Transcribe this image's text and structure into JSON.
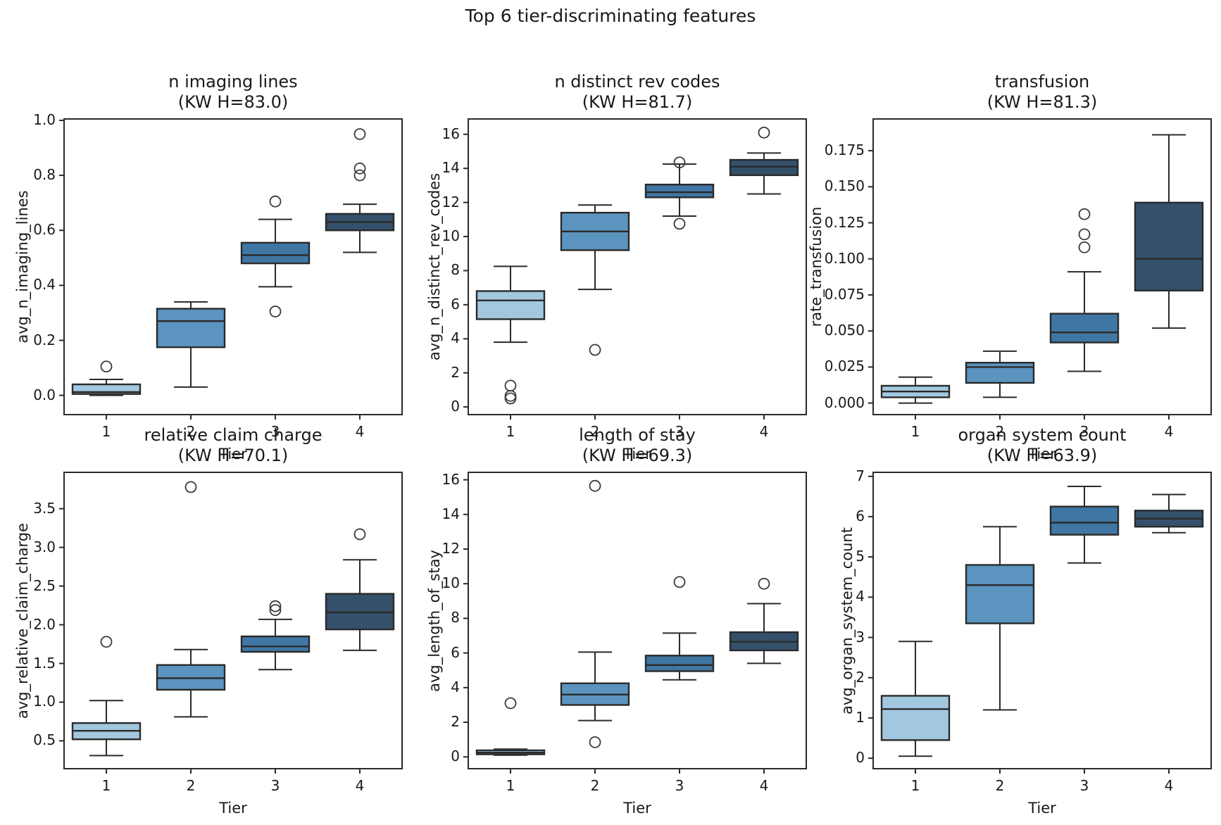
{
  "figure": {
    "suptitle": "Top 6 tier-discriminating features",
    "xlabel": "Tier",
    "x_categories": [
      "1",
      "2",
      "3",
      "4"
    ],
    "tier_colors": [
      "#a2c8e0",
      "#5b94be",
      "#3f76a3",
      "#34506b"
    ],
    "edge_color": "#2a2a2a",
    "text_color": "#191919",
    "background": "#ffffff"
  },
  "chart_data": [
    {
      "type": "box",
      "title": "n imaging lines",
      "subtitle": "(KW H=83.0)",
      "kw_h": 83.0,
      "ylabel": "avg_n_imaging_lines",
      "xlabel": "Tier",
      "categories": [
        "1",
        "2",
        "3",
        "4"
      ],
      "ylim": [
        -0.07,
        1.005
      ],
      "yticks": [
        0.0,
        0.2,
        0.4,
        0.6,
        0.8,
        1.0
      ],
      "ytick_labels": [
        "0.0",
        "0.2",
        "0.4",
        "0.6",
        "0.8",
        "1.0"
      ],
      "boxes": [
        {
          "tier": "1",
          "whislo": 0.0,
          "q1": 0.005,
          "med": 0.012,
          "q3": 0.04,
          "whishi": 0.058,
          "outliers": [
            0.105
          ]
        },
        {
          "tier": "2",
          "whislo": 0.03,
          "q1": 0.175,
          "med": 0.27,
          "q3": 0.315,
          "whishi": 0.34,
          "outliers": []
        },
        {
          "tier": "3",
          "whislo": 0.395,
          "q1": 0.48,
          "med": 0.51,
          "q3": 0.555,
          "whishi": 0.64,
          "outliers": [
            0.705,
            0.305
          ]
        },
        {
          "tier": "4",
          "whislo": 0.52,
          "q1": 0.6,
          "med": 0.63,
          "q3": 0.66,
          "whishi": 0.695,
          "outliers": [
            0.95,
            0.825,
            0.8
          ]
        }
      ]
    },
    {
      "type": "box",
      "title": "n distinct rev codes",
      "subtitle": "(KW H=81.7)",
      "kw_h": 81.7,
      "ylabel": "avg_n_distinct_rev_codes",
      "xlabel": "Tier",
      "categories": [
        "1",
        "2",
        "3",
        "4"
      ],
      "ylim": [
        -0.45,
        16.9
      ],
      "yticks": [
        0,
        2,
        4,
        6,
        8,
        10,
        12,
        14,
        16
      ],
      "ytick_labels": [
        "0",
        "2",
        "4",
        "6",
        "8",
        "10",
        "12",
        "14",
        "16"
      ],
      "boxes": [
        {
          "tier": "1",
          "whislo": 3.8,
          "q1": 5.15,
          "med": 6.25,
          "q3": 6.8,
          "whishi": 8.25,
          "outliers": [
            1.25,
            0.65,
            0.5
          ]
        },
        {
          "tier": "2",
          "whislo": 6.9,
          "q1": 9.2,
          "med": 10.3,
          "q3": 11.4,
          "whishi": 11.85,
          "outliers": [
            3.35
          ]
        },
        {
          "tier": "3",
          "whislo": 11.2,
          "q1": 12.3,
          "med": 12.6,
          "q3": 13.05,
          "whishi": 14.25,
          "outliers": [
            14.35,
            10.75
          ]
        },
        {
          "tier": "4",
          "whislo": 12.5,
          "q1": 13.6,
          "med": 14.1,
          "q3": 14.5,
          "whishi": 14.9,
          "outliers": [
            16.1
          ]
        }
      ]
    },
    {
      "type": "box",
      "title": "transfusion",
      "subtitle": "(KW H=81.3)",
      "kw_h": 81.3,
      "ylabel": "rate_transfusion",
      "xlabel": "Tier",
      "categories": [
        "1",
        "2",
        "3",
        "4"
      ],
      "ylim": [
        -0.008,
        0.197
      ],
      "yticks": [
        0.0,
        0.025,
        0.05,
        0.075,
        0.1,
        0.125,
        0.15,
        0.175
      ],
      "ytick_labels": [
        "0.000",
        "0.025",
        "0.050",
        "0.075",
        "0.100",
        "0.125",
        "0.150",
        "0.175"
      ],
      "boxes": [
        {
          "tier": "1",
          "whislo": 0.0,
          "q1": 0.004,
          "med": 0.008,
          "q3": 0.012,
          "whishi": 0.018,
          "outliers": []
        },
        {
          "tier": "2",
          "whislo": 0.004,
          "q1": 0.014,
          "med": 0.025,
          "q3": 0.028,
          "whishi": 0.036,
          "outliers": []
        },
        {
          "tier": "3",
          "whislo": 0.022,
          "q1": 0.042,
          "med": 0.049,
          "q3": 0.062,
          "whishi": 0.091,
          "outliers": [
            0.131,
            0.117,
            0.108
          ]
        },
        {
          "tier": "4",
          "whislo": 0.052,
          "q1": 0.078,
          "med": 0.1,
          "q3": 0.139,
          "whishi": 0.186,
          "outliers": []
        }
      ]
    },
    {
      "type": "box",
      "title": "relative claim charge",
      "subtitle": "(KW H=70.1)",
      "kw_h": 70.1,
      "ylabel": "avg_relative_claim_charge",
      "xlabel": "Tier",
      "categories": [
        "1",
        "2",
        "3",
        "4"
      ],
      "ylim": [
        0.14,
        3.97
      ],
      "yticks": [
        0.5,
        1.0,
        1.5,
        2.0,
        2.5,
        3.0,
        3.5
      ],
      "ytick_labels": [
        "0.5",
        "1.0",
        "1.5",
        "2.0",
        "2.5",
        "3.0",
        "3.5"
      ],
      "boxes": [
        {
          "tier": "1",
          "whislo": 0.31,
          "q1": 0.52,
          "med": 0.63,
          "q3": 0.73,
          "whishi": 1.02,
          "outliers": [
            1.78
          ]
        },
        {
          "tier": "2",
          "whislo": 0.81,
          "q1": 1.16,
          "med": 1.31,
          "q3": 1.48,
          "whishi": 1.68,
          "outliers": [
            3.78
          ]
        },
        {
          "tier": "3",
          "whislo": 1.42,
          "q1": 1.65,
          "med": 1.72,
          "q3": 1.85,
          "whishi": 2.07,
          "outliers": [
            2.24,
            2.19
          ]
        },
        {
          "tier": "4",
          "whislo": 1.67,
          "q1": 1.94,
          "med": 2.16,
          "q3": 2.4,
          "whishi": 2.84,
          "outliers": [
            3.17
          ]
        }
      ]
    },
    {
      "type": "box",
      "title": "length of stay",
      "subtitle": "(KW H=69.3)",
      "kw_h": 69.3,
      "ylabel": "avg_length_of_stay",
      "xlabel": "Tier",
      "categories": [
        "1",
        "2",
        "3",
        "4"
      ],
      "ylim": [
        -0.68,
        16.43
      ],
      "yticks": [
        0,
        2,
        4,
        6,
        8,
        10,
        12,
        14,
        16
      ],
      "ytick_labels": [
        "0",
        "2",
        "4",
        "6",
        "8",
        "10",
        "12",
        "14",
        "16"
      ],
      "boxes": [
        {
          "tier": "1",
          "whislo": 0.1,
          "q1": 0.15,
          "med": 0.25,
          "q3": 0.38,
          "whishi": 0.45,
          "outliers": [
            3.1
          ]
        },
        {
          "tier": "2",
          "whislo": 2.1,
          "q1": 3.0,
          "med": 3.6,
          "q3": 4.25,
          "whishi": 6.05,
          "outliers": [
            15.65,
            0.85
          ]
        },
        {
          "tier": "3",
          "whislo": 4.45,
          "q1": 4.95,
          "med": 5.3,
          "q3": 5.85,
          "whishi": 7.15,
          "outliers": [
            10.1
          ]
        },
        {
          "tier": "4",
          "whislo": 5.4,
          "q1": 6.15,
          "med": 6.65,
          "q3": 7.2,
          "whishi": 8.85,
          "outliers": [
            10.0
          ]
        }
      ]
    },
    {
      "type": "box",
      "title": "organ system count",
      "subtitle": "(KW H=63.9)",
      "kw_h": 63.9,
      "ylabel": "avg_organ_system_count",
      "xlabel": "Tier",
      "categories": [
        "1",
        "2",
        "3",
        "4"
      ],
      "ylim": [
        -0.26,
        7.1
      ],
      "yticks": [
        0,
        1,
        2,
        3,
        4,
        5,
        6,
        7
      ],
      "ytick_labels": [
        "0",
        "1",
        "2",
        "3",
        "4",
        "5",
        "6",
        "7"
      ],
      "boxes": [
        {
          "tier": "1",
          "whislo": 0.05,
          "q1": 0.45,
          "med": 1.22,
          "q3": 1.55,
          "whishi": 2.9,
          "outliers": []
        },
        {
          "tier": "2",
          "whislo": 1.2,
          "q1": 3.35,
          "med": 4.3,
          "q3": 4.8,
          "whishi": 5.75,
          "outliers": []
        },
        {
          "tier": "3",
          "whislo": 4.85,
          "q1": 5.55,
          "med": 5.85,
          "q3": 6.25,
          "whishi": 6.75,
          "outliers": []
        },
        {
          "tier": "4",
          "whislo": 5.6,
          "q1": 5.75,
          "med": 5.95,
          "q3": 6.15,
          "whishi": 6.55,
          "outliers": []
        }
      ]
    }
  ]
}
